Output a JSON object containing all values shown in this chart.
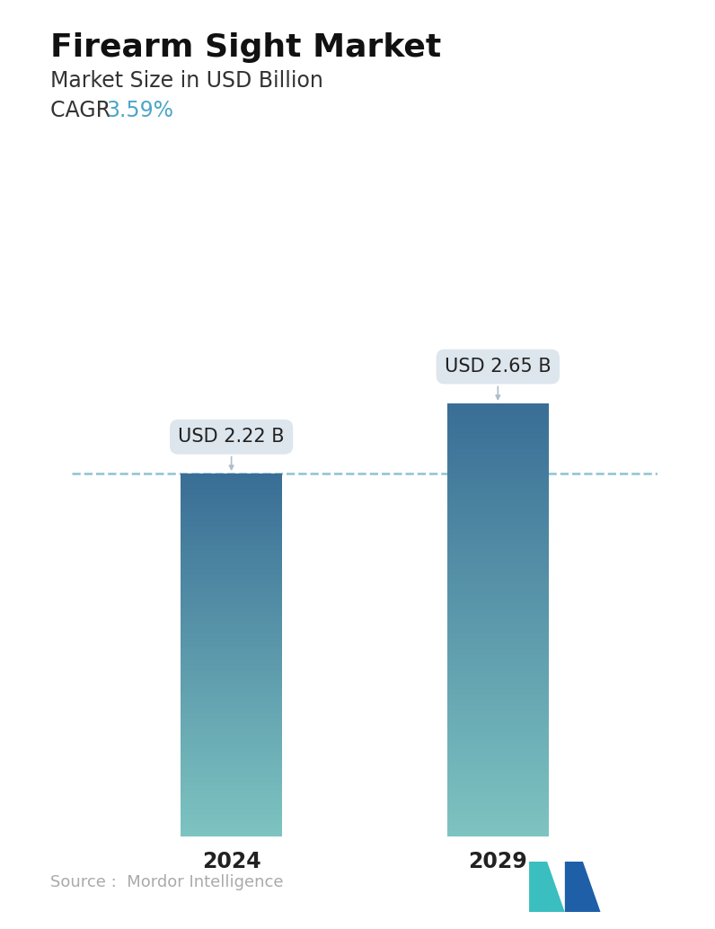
{
  "title": "Firearm Sight Market",
  "subtitle": "Market Size in USD Billion",
  "cagr_label": "CAGR  ",
  "cagr_value": "3.59%",
  "cagr_color": "#4da6c8",
  "categories": [
    "2024",
    "2029"
  ],
  "values": [
    2.22,
    2.65
  ],
  "bar_labels": [
    "USD 2.22 B",
    "USD 2.65 B"
  ],
  "bar_top_color": "#3a6e96",
  "bar_bottom_color": "#7ec4c1",
  "dashed_line_color": "#7ab8cc",
  "dashed_line_y": 2.22,
  "background_color": "#ffffff",
  "source_text": "Source :  Mordor Intelligence",
  "source_color": "#aaaaaa",
  "title_fontsize": 26,
  "subtitle_fontsize": 17,
  "cagr_fontsize": 17,
  "xlabel_fontsize": 17,
  "label_fontsize": 15,
  "ylim": [
    0,
    3.3
  ],
  "bar_width": 0.38
}
